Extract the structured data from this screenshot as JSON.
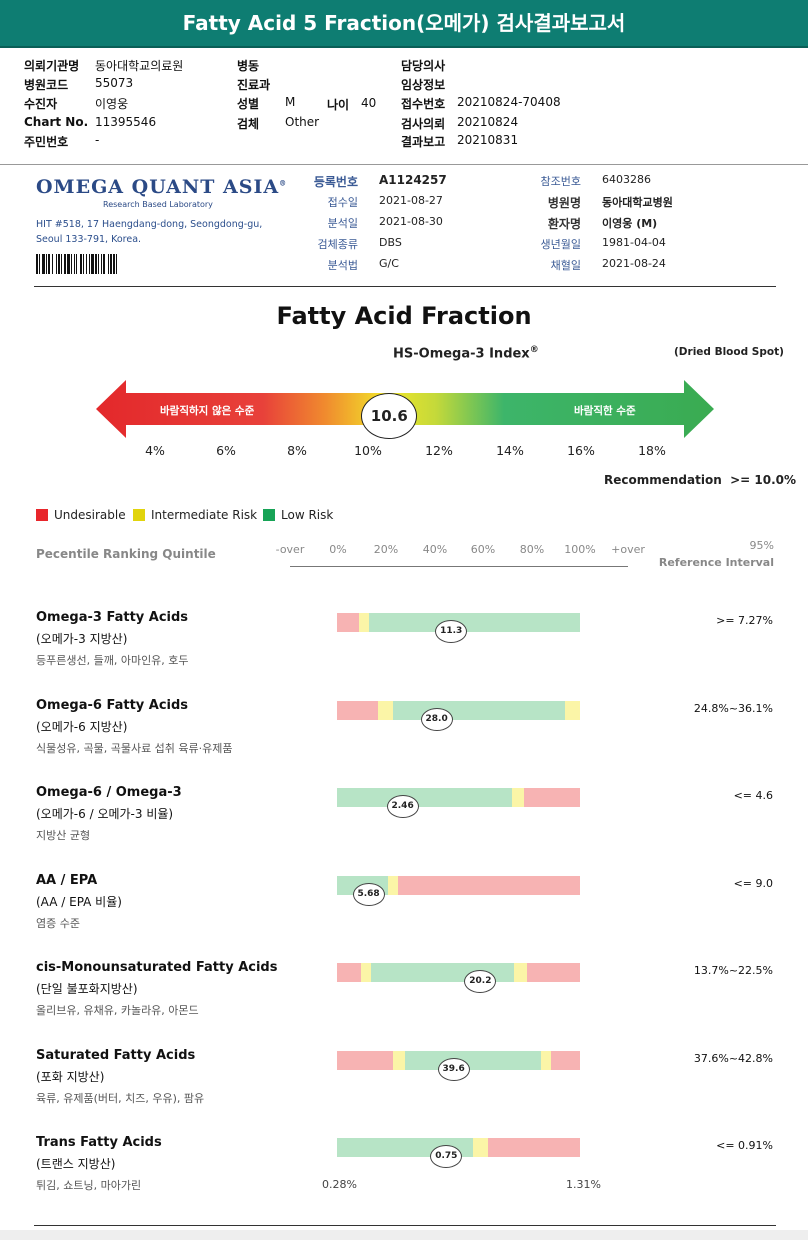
{
  "header": {
    "title": "Fatty Acid 5 Fraction(오메가) 검사결과보고서",
    "left": [
      {
        "label": "의뢰기관명",
        "value": "동아대학교의료원"
      },
      {
        "label": "병원코드",
        "value": "55073"
      },
      {
        "label": "수진자",
        "value": "이영웅"
      },
      {
        "label": "Chart No.",
        "value": "11395546"
      },
      {
        "label": "주민번호",
        "value": "-"
      }
    ],
    "mid": [
      {
        "label": "병동",
        "value": ""
      },
      {
        "label": "진료과",
        "value": ""
      },
      {
        "label": "성별",
        "value": "M"
      },
      {
        "label": "검체",
        "value": "Other"
      }
    ],
    "age_label": "나이",
    "age_value": "40",
    "right": [
      {
        "label": "담당의사",
        "value": ""
      },
      {
        "label": "임상정보",
        "value": ""
      },
      {
        "label": "접수번호",
        "value": "20210824-70408"
      },
      {
        "label": "검사의뢰",
        "value": "20210824"
      },
      {
        "label": "결과보고",
        "value": "20210831"
      }
    ]
  },
  "lab": {
    "logo": "OMEGA QUANT ASIA",
    "logo_mark": "®",
    "logo_sub": "Research Based Laboratory",
    "address1": "HIT #518, 17 Haengdang-dong, Seongdong-gu,",
    "address2": "Seoul 133-791, Korea.",
    "info_left": [
      {
        "label": "등록번호",
        "value": "A1124257",
        "bold": true
      },
      {
        "label": "접수일",
        "value": "2021-08-27"
      },
      {
        "label": "분석일",
        "value": "2021-08-30"
      },
      {
        "label": "검체종류",
        "value": "DBS"
      },
      {
        "label": "분석법",
        "value": "G/C"
      }
    ],
    "info_right": [
      {
        "label": "참조번호",
        "value": "6403286"
      },
      {
        "label": "병원명",
        "value": "동아대학교병원",
        "bold": true
      },
      {
        "label": "환자명",
        "value": "이영웅 (M)",
        "bold": true
      },
      {
        "label": "생년월일",
        "value": "1981-04-04"
      },
      {
        "label": "채혈일",
        "value": "2021-08-24"
      }
    ]
  },
  "report": {
    "title": "Fatty Acid Fraction",
    "index_label": "HS-Omega-3 Index",
    "index_sup": "®",
    "sample_type": "(Dried Blood Spot)",
    "arrow_left_text": "바람직하지 않은 수준",
    "arrow_right_text": "바람직한 수준",
    "index_value": "10.6",
    "index_numeric": 10.6,
    "scale_ticks": [
      "4%",
      "6%",
      "8%",
      "10%",
      "12%",
      "14%",
      "16%",
      "18%"
    ],
    "recommendation_label": "Recommendation",
    "recommendation_value": ">= 10.0%",
    "legend": [
      {
        "label": "Undesirable",
        "color": "#e8262b"
      },
      {
        "label": "Intermediate Risk",
        "color": "#e1d40c"
      },
      {
        "label": "Low Risk",
        "color": "#17a356"
      }
    ],
    "percentile_label": "Pecentile Ranking Quintile",
    "percentile_ticks": [
      "-over",
      "0%",
      "20%",
      "40%",
      "60%",
      "80%",
      "100%",
      "+over"
    ],
    "reference_header_1": "95%",
    "reference_header_2": "Reference Interval",
    "bar_min_label": "0.28%",
    "bar_max_label": "1.31%"
  },
  "colors": {
    "teal": "#0e7d72",
    "red_zone": "#f7b3b3",
    "yellow_zone": "#fbf5a7",
    "green_zone": "#b7e4c6"
  },
  "sections": [
    {
      "title": "Omega-3 Fatty Acids",
      "kr": "(오메가-3 지방산)",
      "food": "등푸른생선, 들깨, 아마인유, 호두",
      "ref": ">= 7.27%",
      "value": "11.3",
      "marker": 0.47,
      "zones": [
        [
          "r",
          0,
          0.09
        ],
        [
          "y",
          0.09,
          0.13
        ],
        [
          "g",
          0.13,
          1
        ]
      ]
    },
    {
      "title": "Omega-6 Fatty Acids",
      "kr": "(오메가-6 지방산)",
      "food": "식물성유, 곡물, 곡물사료 섭취 육류·유제품",
      "ref": "24.8%~36.1%",
      "value": "28.0",
      "marker": 0.41,
      "zones": [
        [
          "r",
          0,
          0.17
        ],
        [
          "y",
          0.17,
          0.23
        ],
        [
          "g",
          0.23,
          0.94
        ],
        [
          "y",
          0.94,
          1
        ]
      ]
    },
    {
      "title": "Omega-6 / Omega-3",
      "kr": "(오메가-6 / 오메가-3 비율)",
      "food": "지방산 균형",
      "ref": "<= 4.6",
      "value": "2.46",
      "marker": 0.27,
      "zones": [
        [
          "g",
          0,
          0.72
        ],
        [
          "y",
          0.72,
          0.77
        ],
        [
          "r",
          0.77,
          1
        ]
      ]
    },
    {
      "title": "AA / EPA",
      "kr": "(AA / EPA 비율)",
      "food": "염증 수준",
      "ref": "<= 9.0",
      "value": "5.68",
      "marker": 0.13,
      "zones": [
        [
          "g",
          0,
          0.21
        ],
        [
          "y",
          0.21,
          0.25
        ],
        [
          "r",
          0.25,
          1
        ]
      ]
    },
    {
      "title": "cis-Monounsaturated Fatty Acids",
      "kr": "(단일 불포화지방산)",
      "food": "올리브유, 유채유, 카놀라유, 아몬드",
      "ref": "13.7%~22.5%",
      "value": "20.2",
      "marker": 0.59,
      "zones": [
        [
          "r",
          0,
          0.1
        ],
        [
          "y",
          0.1,
          0.14
        ],
        [
          "g",
          0.14,
          0.73
        ],
        [
          "y",
          0.73,
          0.78
        ],
        [
          "r",
          0.78,
          1
        ]
      ]
    },
    {
      "title": "Saturated Fatty Acids",
      "kr": "(포화 지방산)",
      "food": "육류, 유제품(버터, 치즈, 우유), 팜유",
      "ref": "37.6%~42.8%",
      "value": "39.6",
      "marker": 0.48,
      "zones": [
        [
          "r",
          0,
          0.23
        ],
        [
          "y",
          0.23,
          0.28
        ],
        [
          "g",
          0.28,
          0.84
        ],
        [
          "y",
          0.84,
          0.88
        ],
        [
          "r",
          0.88,
          1
        ]
      ]
    },
    {
      "title": "Trans Fatty Acids",
      "kr": "(트랜스 지방산)",
      "food": "튀김, 쇼트닝, 마아가린",
      "ref": "<= 0.91%",
      "value": "0.75",
      "marker": 0.45,
      "zones": [
        [
          "g",
          0,
          0.56
        ],
        [
          "y",
          0.56,
          0.62
        ],
        [
          "r",
          0.62,
          1
        ]
      ]
    }
  ]
}
